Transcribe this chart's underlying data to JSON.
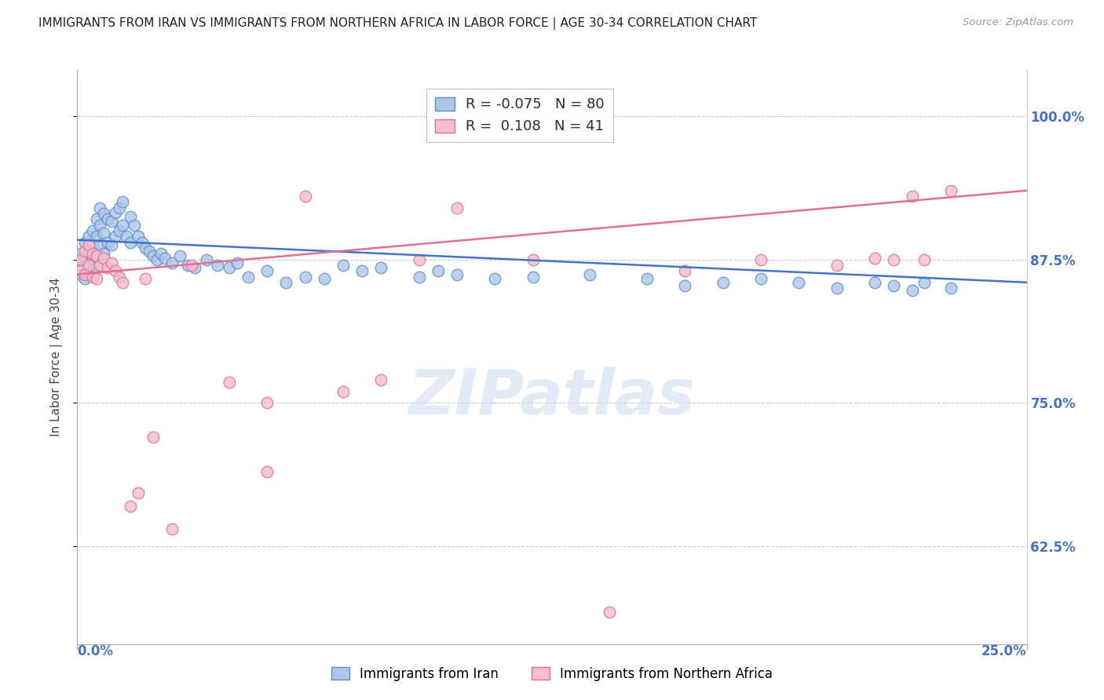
{
  "title": "IMMIGRANTS FROM IRAN VS IMMIGRANTS FROM NORTHERN AFRICA IN LABOR FORCE | AGE 30-34 CORRELATION CHART",
  "source": "Source: ZipAtlas.com",
  "ylabel": "In Labor Force | Age 30-34",
  "yticks": [
    0.625,
    0.75,
    0.875,
    1.0
  ],
  "ytick_labels": [
    "62.5%",
    "75.0%",
    "87.5%",
    "100.0%"
  ],
  "xticks": [
    0.0,
    0.25
  ],
  "xtick_labels": [
    "0.0%",
    "25.0%"
  ],
  "xlim": [
    0.0,
    0.25
  ],
  "ylim": [
    0.54,
    1.04
  ],
  "iran_R": -0.075,
  "iran_N": 80,
  "africa_R": 0.108,
  "africa_N": 41,
  "iran_color": "#aec6e8",
  "iran_edge_color": "#5b8fc9",
  "iran_line_color": "#4472c4",
  "africa_color": "#f5bdd0",
  "africa_edge_color": "#e07090",
  "africa_line_color": "#e07090",
  "watermark": "ZIPatlas",
  "background_color": "#ffffff",
  "title_color": "#222222",
  "right_ytick_color": "#4472c4",
  "bottom_xtick_color": "#4472c4",
  "iran_scatter_x": [
    0.001,
    0.001,
    0.001,
    0.002,
    0.002,
    0.002,
    0.002,
    0.003,
    0.003,
    0.003,
    0.003,
    0.004,
    0.004,
    0.004,
    0.004,
    0.005,
    0.005,
    0.005,
    0.005,
    0.006,
    0.006,
    0.006,
    0.007,
    0.007,
    0.007,
    0.008,
    0.008,
    0.009,
    0.009,
    0.01,
    0.01,
    0.011,
    0.011,
    0.012,
    0.012,
    0.013,
    0.014,
    0.014,
    0.015,
    0.016,
    0.017,
    0.018,
    0.019,
    0.02,
    0.021,
    0.022,
    0.023,
    0.025,
    0.027,
    0.029,
    0.031,
    0.034,
    0.037,
    0.04,
    0.042,
    0.045,
    0.05,
    0.055,
    0.06,
    0.065,
    0.07,
    0.075,
    0.08,
    0.09,
    0.095,
    0.1,
    0.11,
    0.12,
    0.135,
    0.15,
    0.16,
    0.17,
    0.18,
    0.19,
    0.2,
    0.21,
    0.215,
    0.22,
    0.223,
    0.23
  ],
  "iran_scatter_y": [
    0.875,
    0.88,
    0.862,
    0.89,
    0.876,
    0.87,
    0.858,
    0.895,
    0.882,
    0.872,
    0.862,
    0.9,
    0.888,
    0.876,
    0.865,
    0.91,
    0.895,
    0.88,
    0.868,
    0.92,
    0.905,
    0.888,
    0.915,
    0.898,
    0.88,
    0.91,
    0.89,
    0.908,
    0.888,
    0.916,
    0.895,
    0.92,
    0.9,
    0.925,
    0.905,
    0.895,
    0.912,
    0.89,
    0.905,
    0.895,
    0.89,
    0.885,
    0.882,
    0.878,
    0.875,
    0.88,
    0.876,
    0.872,
    0.878,
    0.87,
    0.868,
    0.875,
    0.87,
    0.868,
    0.872,
    0.86,
    0.865,
    0.855,
    0.86,
    0.858,
    0.87,
    0.865,
    0.868,
    0.86,
    0.865,
    0.862,
    0.858,
    0.86,
    0.862,
    0.858,
    0.852,
    0.855,
    0.858,
    0.855,
    0.85,
    0.855,
    0.852,
    0.848,
    0.855,
    0.85
  ],
  "africa_scatter_x": [
    0.001,
    0.001,
    0.002,
    0.002,
    0.003,
    0.003,
    0.004,
    0.004,
    0.005,
    0.005,
    0.006,
    0.007,
    0.008,
    0.009,
    0.01,
    0.011,
    0.012,
    0.014,
    0.016,
    0.018,
    0.02,
    0.025,
    0.03,
    0.04,
    0.05,
    0.06,
    0.07,
    0.08,
    0.09,
    0.1,
    0.05,
    0.12,
    0.14,
    0.16,
    0.18,
    0.2,
    0.21,
    0.215,
    0.22,
    0.223,
    0.23
  ],
  "africa_scatter_y": [
    0.875,
    0.865,
    0.882,
    0.862,
    0.888,
    0.87,
    0.88,
    0.86,
    0.878,
    0.858,
    0.87,
    0.876,
    0.868,
    0.872,
    0.865,
    0.86,
    0.855,
    0.66,
    0.672,
    0.858,
    0.72,
    0.64,
    0.87,
    0.768,
    0.75,
    0.93,
    0.76,
    0.77,
    0.875,
    0.92,
    0.69,
    0.875,
    0.568,
    0.865,
    0.875,
    0.87,
    0.876,
    0.875,
    0.93,
    0.875,
    0.935
  ]
}
